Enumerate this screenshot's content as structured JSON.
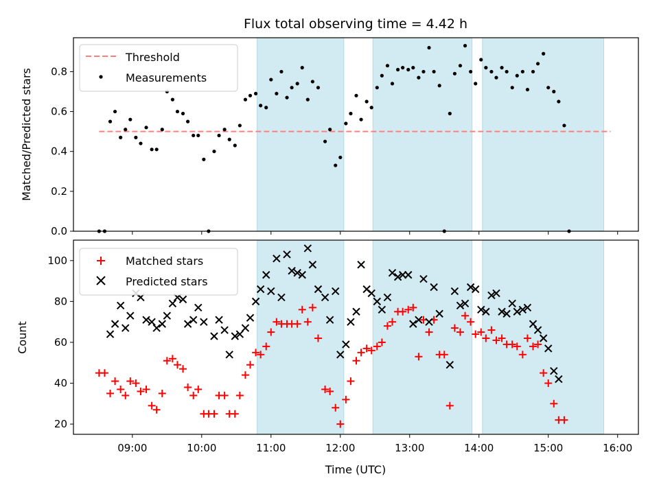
{
  "chart_data": [
    {
      "type": "scatter",
      "title": "Flux total observing time = 4.42 h",
      "ylabel": "Matched/Predicted stars",
      "ylim": [
        0,
        0.97
      ],
      "yticks": [
        "0.0",
        "0.2",
        "0.4",
        "0.6",
        "0.8"
      ],
      "xlim": [
        8.15,
        16.3
      ],
      "shaded_intervals": [
        [
          10.8,
          12.05
        ],
        [
          12.47,
          13.9
        ],
        [
          14.05,
          15.8
        ]
      ],
      "colors": {
        "threshold": "#ff7f7f",
        "measurements": "#000000",
        "shade": "#add8e6"
      },
      "threshold": {
        "name": "Threshold",
        "value": 0.5,
        "x_range": [
          8.52,
          15.9
        ]
      },
      "legend_position": "upper left",
      "series": [
        {
          "name": "Measurements",
          "points": [
            [
              8.52,
              0
            ],
            [
              8.6,
              0
            ],
            [
              8.68,
              0.55
            ],
            [
              8.75,
              0.6
            ],
            [
              8.83,
              0.47
            ],
            [
              8.9,
              0.51
            ],
            [
              8.97,
              0.56
            ],
            [
              9.05,
              0.47
            ],
            [
              9.12,
              0.44
            ],
            [
              9.2,
              0.52
            ],
            [
              9.28,
              0.41
            ],
            [
              9.35,
              0.41
            ],
            [
              9.43,
              0.51
            ],
            [
              9.5,
              0.7
            ],
            [
              9.58,
              0.66
            ],
            [
              9.65,
              0.6
            ],
            [
              9.73,
              0.59
            ],
            [
              9.8,
              0.55
            ],
            [
              9.88,
              0.48
            ],
            [
              9.95,
              0.48
            ],
            [
              10.03,
              0.36
            ],
            [
              10.1,
              0
            ],
            [
              10.18,
              0.4
            ],
            [
              10.25,
              0.48
            ],
            [
              10.33,
              0.51
            ],
            [
              10.4,
              0.46
            ],
            [
              10.48,
              0.43
            ],
            [
              10.55,
              0.53
            ],
            [
              10.63,
              0.66
            ],
            [
              10.7,
              0.68
            ],
            [
              10.78,
              0.69
            ],
            [
              10.85,
              0.63
            ],
            [
              10.93,
              0.62
            ],
            [
              11.0,
              0.76
            ],
            [
              11.08,
              0.69
            ],
            [
              11.15,
              0.8
            ],
            [
              11.23,
              0.67
            ],
            [
              11.3,
              0.72
            ],
            [
              11.38,
              0.74
            ],
            [
              11.45,
              0.82
            ],
            [
              11.53,
              0.66
            ],
            [
              11.6,
              0.75
            ],
            [
              11.68,
              0.72
            ],
            [
              11.78,
              0.45
            ],
            [
              11.85,
              0.51
            ],
            [
              11.93,
              0.33
            ],
            [
              12.0,
              0.37
            ],
            [
              12.08,
              0.54
            ],
            [
              12.15,
              0.59
            ],
            [
              12.23,
              0.68
            ],
            [
              12.3,
              0.56
            ],
            [
              12.38,
              0.65
            ],
            [
              12.45,
              0.62
            ],
            [
              12.53,
              0.72
            ],
            [
              12.6,
              0.78
            ],
            [
              12.68,
              0.83
            ],
            [
              12.75,
              0.74
            ],
            [
              12.83,
              0.81
            ],
            [
              12.9,
              0.82
            ],
            [
              12.98,
              0.81
            ],
            [
              13.05,
              0.82
            ],
            [
              13.13,
              0.77
            ],
            [
              13.2,
              0.8
            ],
            [
              13.28,
              0.92
            ],
            [
              13.35,
              0.8
            ],
            [
              13.43,
              0.73
            ],
            [
              13.5,
              0
            ],
            [
              13.58,
              0.59
            ],
            [
              13.65,
              0.79
            ],
            [
              13.73,
              0.83
            ],
            [
              13.8,
              0.93
            ],
            [
              13.88,
              0.8
            ],
            [
              13.95,
              0.74
            ],
            [
              14.03,
              0.86
            ],
            [
              14.1,
              0.82
            ],
            [
              14.18,
              0.8
            ],
            [
              14.25,
              0.77
            ],
            [
              14.33,
              0.82
            ],
            [
              14.4,
              0.8
            ],
            [
              14.48,
              0.72
            ],
            [
              14.55,
              0.78
            ],
            [
              14.63,
              0.8
            ],
            [
              14.7,
              0.71
            ],
            [
              14.78,
              0.8
            ],
            [
              14.85,
              0.84
            ],
            [
              14.93,
              0.89
            ],
            [
              15.0,
              0.72
            ],
            [
              15.08,
              0.7
            ],
            [
              15.15,
              0.65
            ],
            [
              15.23,
              0.53
            ],
            [
              15.3,
              0
            ]
          ]
        }
      ]
    },
    {
      "type": "scatter",
      "ylabel": "Count",
      "xlabel": "Time (UTC)",
      "ylim": [
        15,
        110
      ],
      "yticks": [
        "20",
        "40",
        "60",
        "80",
        "100"
      ],
      "xlim": [
        8.15,
        16.3
      ],
      "xticks": [
        "09:00",
        "10:00",
        "11:00",
        "12:00",
        "13:00",
        "14:00",
        "15:00",
        "16:00"
      ],
      "shaded_intervals": [
        [
          10.8,
          12.05
        ],
        [
          12.47,
          13.9
        ],
        [
          14.05,
          15.8
        ]
      ],
      "colors": {
        "matched": "#ff0000",
        "predicted": "#000000",
        "shade": "#add8e6"
      },
      "legend_position": "upper left",
      "series": [
        {
          "name": "Matched stars",
          "marker": "plus",
          "points": [
            [
              8.52,
              45
            ],
            [
              8.6,
              45
            ],
            [
              8.68,
              35
            ],
            [
              8.75,
              41
            ],
            [
              8.83,
              37
            ],
            [
              8.9,
              34
            ],
            [
              8.97,
              41
            ],
            [
              9.05,
              40
            ],
            [
              9.12,
              36
            ],
            [
              9.2,
              37
            ],
            [
              9.28,
              29
            ],
            [
              9.35,
              27
            ],
            [
              9.43,
              35
            ],
            [
              9.5,
              51
            ],
            [
              9.58,
              52
            ],
            [
              9.65,
              49
            ],
            [
              9.73,
              47
            ],
            [
              9.8,
              38
            ],
            [
              9.88,
              34
            ],
            [
              9.95,
              37
            ],
            [
              10.03,
              25
            ],
            [
              10.1,
              25
            ],
            [
              10.18,
              25
            ],
            [
              10.25,
              34
            ],
            [
              10.33,
              34
            ],
            [
              10.4,
              25
            ],
            [
              10.48,
              25
            ],
            [
              10.55,
              34
            ],
            [
              10.63,
              44
            ],
            [
              10.7,
              49
            ],
            [
              10.78,
              55
            ],
            [
              10.85,
              54
            ],
            [
              10.93,
              58
            ],
            [
              11.0,
              65
            ],
            [
              11.08,
              70
            ],
            [
              11.15,
              69
            ],
            [
              11.23,
              69
            ],
            [
              11.3,
              69
            ],
            [
              11.38,
              69
            ],
            [
              11.45,
              76
            ],
            [
              11.53,
              70
            ],
            [
              11.6,
              77
            ],
            [
              11.68,
              62
            ],
            [
              11.78,
              37
            ],
            [
              11.85,
              36
            ],
            [
              11.93,
              28
            ],
            [
              12.0,
              20
            ],
            [
              12.08,
              32
            ],
            [
              12.15,
              41
            ],
            [
              12.23,
              51
            ],
            [
              12.3,
              55
            ],
            [
              12.38,
              57
            ],
            [
              12.45,
              56
            ],
            [
              12.53,
              58
            ],
            [
              12.6,
              60
            ],
            [
              12.68,
              68
            ],
            [
              12.75,
              70
            ],
            [
              12.83,
              75
            ],
            [
              12.9,
              75
            ],
            [
              12.98,
              76
            ],
            [
              13.05,
              77
            ],
            [
              13.13,
              53
            ],
            [
              13.2,
              71
            ],
            [
              13.28,
              65
            ],
            [
              13.35,
              71
            ],
            [
              13.43,
              54
            ],
            [
              13.5,
              54
            ],
            [
              13.58,
              29
            ],
            [
              13.65,
              67
            ],
            [
              13.73,
              65
            ],
            [
              13.8,
              73
            ],
            [
              13.88,
              70
            ],
            [
              13.95,
              64
            ],
            [
              14.03,
              65
            ],
            [
              14.1,
              62
            ],
            [
              14.18,
              66
            ],
            [
              14.25,
              61
            ],
            [
              14.33,
              62
            ],
            [
              14.4,
              59
            ],
            [
              14.48,
              59
            ],
            [
              14.55,
              58
            ],
            [
              14.63,
              54
            ],
            [
              14.7,
              62
            ],
            [
              14.78,
              58
            ],
            [
              14.85,
              59
            ],
            [
              14.93,
              45
            ],
            [
              15.0,
              40
            ],
            [
              15.08,
              30
            ],
            [
              15.15,
              22
            ],
            [
              15.23,
              22
            ]
          ]
        },
        {
          "name": "Predicted stars",
          "marker": "x",
          "points": [
            [
              8.68,
              64
            ],
            [
              8.75,
              69
            ],
            [
              8.83,
              78
            ],
            [
              8.9,
              67
            ],
            [
              8.97,
              73
            ],
            [
              9.05,
              84
            ],
            [
              9.12,
              82
            ],
            [
              9.2,
              71
            ],
            [
              9.28,
              70
            ],
            [
              9.35,
              67
            ],
            [
              9.43,
              69
            ],
            [
              9.5,
              73
            ],
            [
              9.58,
              79
            ],
            [
              9.65,
              82
            ],
            [
              9.73,
              81
            ],
            [
              9.8,
              69
            ],
            [
              9.88,
              71
            ],
            [
              9.95,
              77
            ],
            [
              10.03,
              70
            ],
            [
              10.18,
              63
            ],
            [
              10.25,
              71
            ],
            [
              10.33,
              66
            ],
            [
              10.4,
              54
            ],
            [
              10.48,
              63
            ],
            [
              10.55,
              64
            ],
            [
              10.63,
              67
            ],
            [
              10.7,
              72
            ],
            [
              10.78,
              80
            ],
            [
              10.85,
              86
            ],
            [
              10.93,
              93
            ],
            [
              11.0,
              85
            ],
            [
              11.08,
              101
            ],
            [
              11.15,
              82
            ],
            [
              11.23,
              103
            ],
            [
              11.3,
              95
            ],
            [
              11.38,
              94
            ],
            [
              11.45,
              93
            ],
            [
              11.53,
              106
            ],
            [
              11.6,
              98
            ],
            [
              11.68,
              86
            ],
            [
              11.78,
              82
            ],
            [
              11.85,
              71
            ],
            [
              11.93,
              85
            ],
            [
              12.0,
              54
            ],
            [
              12.08,
              59
            ],
            [
              12.15,
              70
            ],
            [
              12.23,
              75
            ],
            [
              12.3,
              98
            ],
            [
              12.38,
              86
            ],
            [
              12.45,
              84
            ],
            [
              12.53,
              80
            ],
            [
              12.6,
              76
            ],
            [
              12.68,
              82
            ],
            [
              12.75,
              94
            ],
            [
              12.83,
              92
            ],
            [
              12.9,
              93
            ],
            [
              12.98,
              93
            ],
            [
              13.05,
              69
            ],
            [
              13.13,
              71
            ],
            [
              13.2,
              91
            ],
            [
              13.28,
              70
            ],
            [
              13.35,
              87
            ],
            [
              13.43,
              74
            ],
            [
              13.58,
              49
            ],
            [
              13.65,
              85
            ],
            [
              13.73,
              78
            ],
            [
              13.8,
              79
            ],
            [
              13.88,
              87
            ],
            [
              13.95,
              86
            ],
            [
              14.03,
              76
            ],
            [
              14.1,
              75
            ],
            [
              14.18,
              83
            ],
            [
              14.25,
              84
            ],
            [
              14.33,
              75
            ],
            [
              14.4,
              74
            ],
            [
              14.48,
              79
            ],
            [
              14.55,
              75
            ],
            [
              14.63,
              76
            ],
            [
              14.7,
              77
            ],
            [
              14.78,
              69
            ],
            [
              14.85,
              66
            ],
            [
              14.93,
              62
            ],
            [
              15.0,
              57
            ],
            [
              15.08,
              46
            ],
            [
              15.15,
              42
            ]
          ]
        }
      ]
    }
  ]
}
